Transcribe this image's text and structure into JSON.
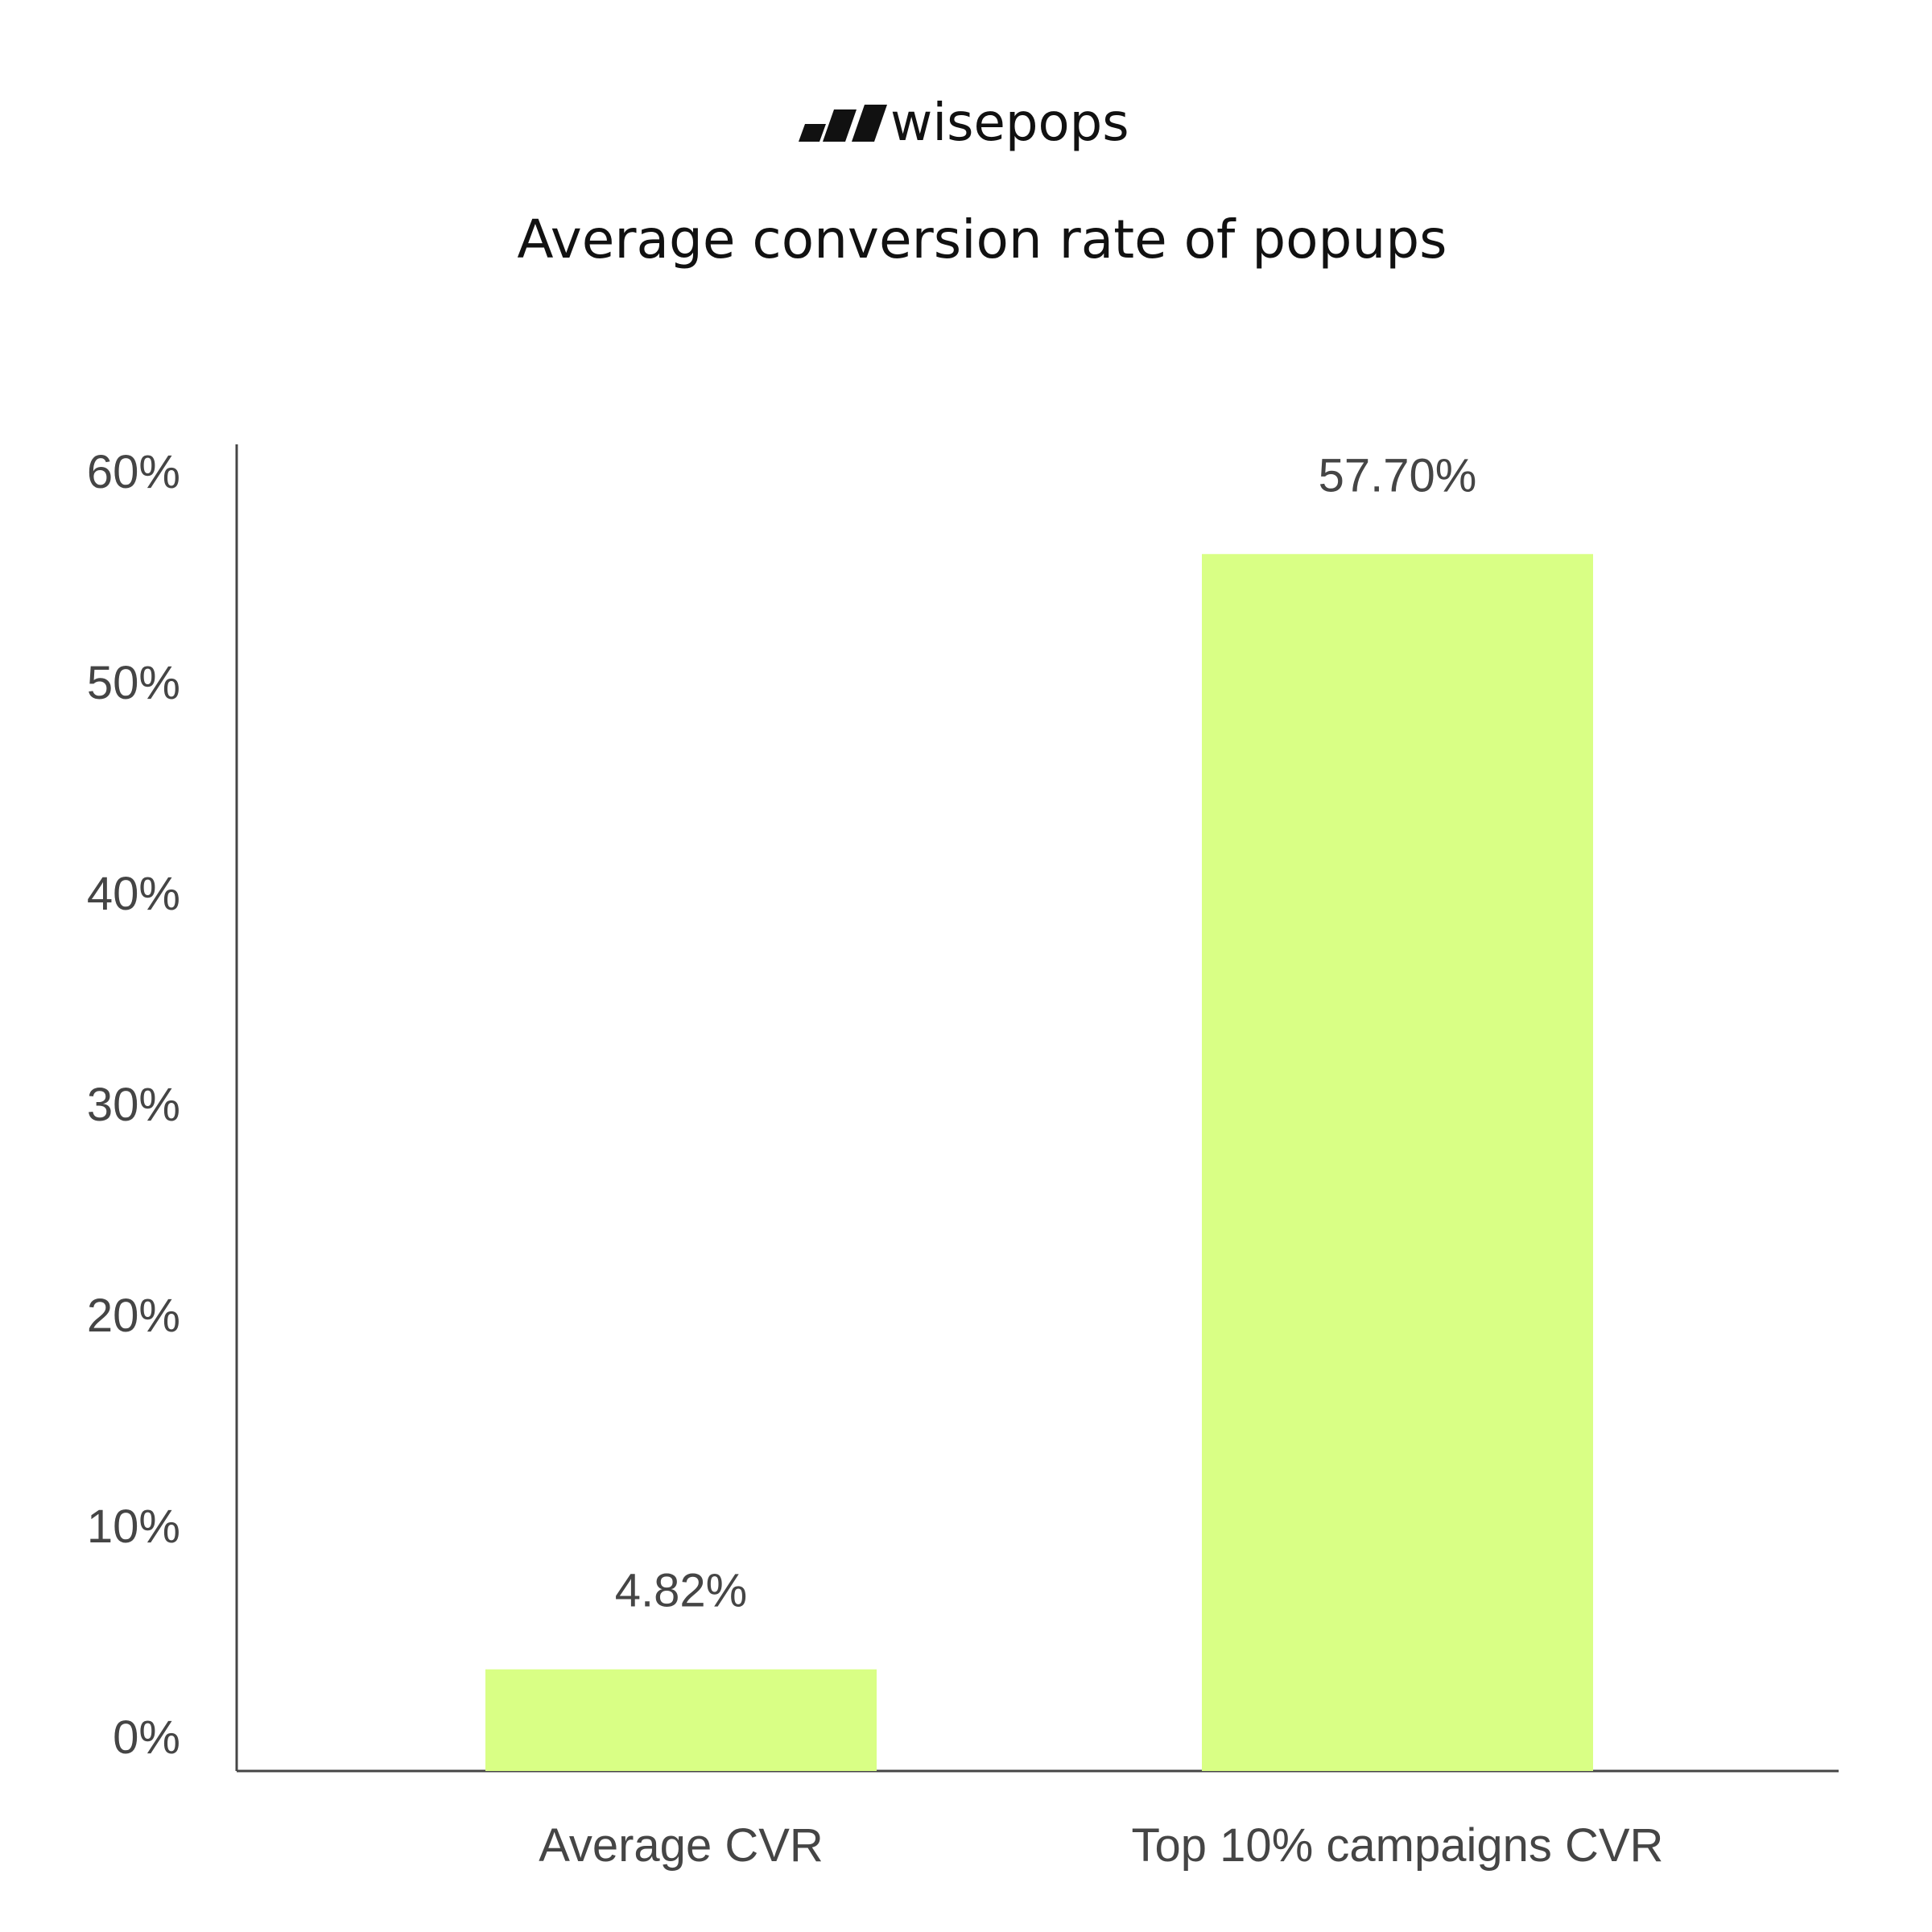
{
  "brand": {
    "name": "wisepops",
    "logo_icon": "wisepops-logo-icon"
  },
  "colors": {
    "bar": "#d9ff85",
    "axis": "#454545",
    "text": "#454545",
    "title": "#111111"
  },
  "chart_data": {
    "type": "bar",
    "title": "Average conversion rate of popups",
    "xlabel": "",
    "ylabel": "",
    "categories": [
      "Average CVR",
      "Top 10% campaigns CVR"
    ],
    "values": [
      4.82,
      57.7
    ],
    "value_labels": [
      "4.82%",
      "57.70%"
    ],
    "ylim": [
      0,
      63
    ],
    "yticks": [
      0,
      10,
      20,
      30,
      40,
      50,
      60
    ],
    "ytick_labels": [
      "0%",
      "10%",
      "20%",
      "30%",
      "40%",
      "50%",
      "60%"
    ],
    "grid": false,
    "legend": "none"
  }
}
